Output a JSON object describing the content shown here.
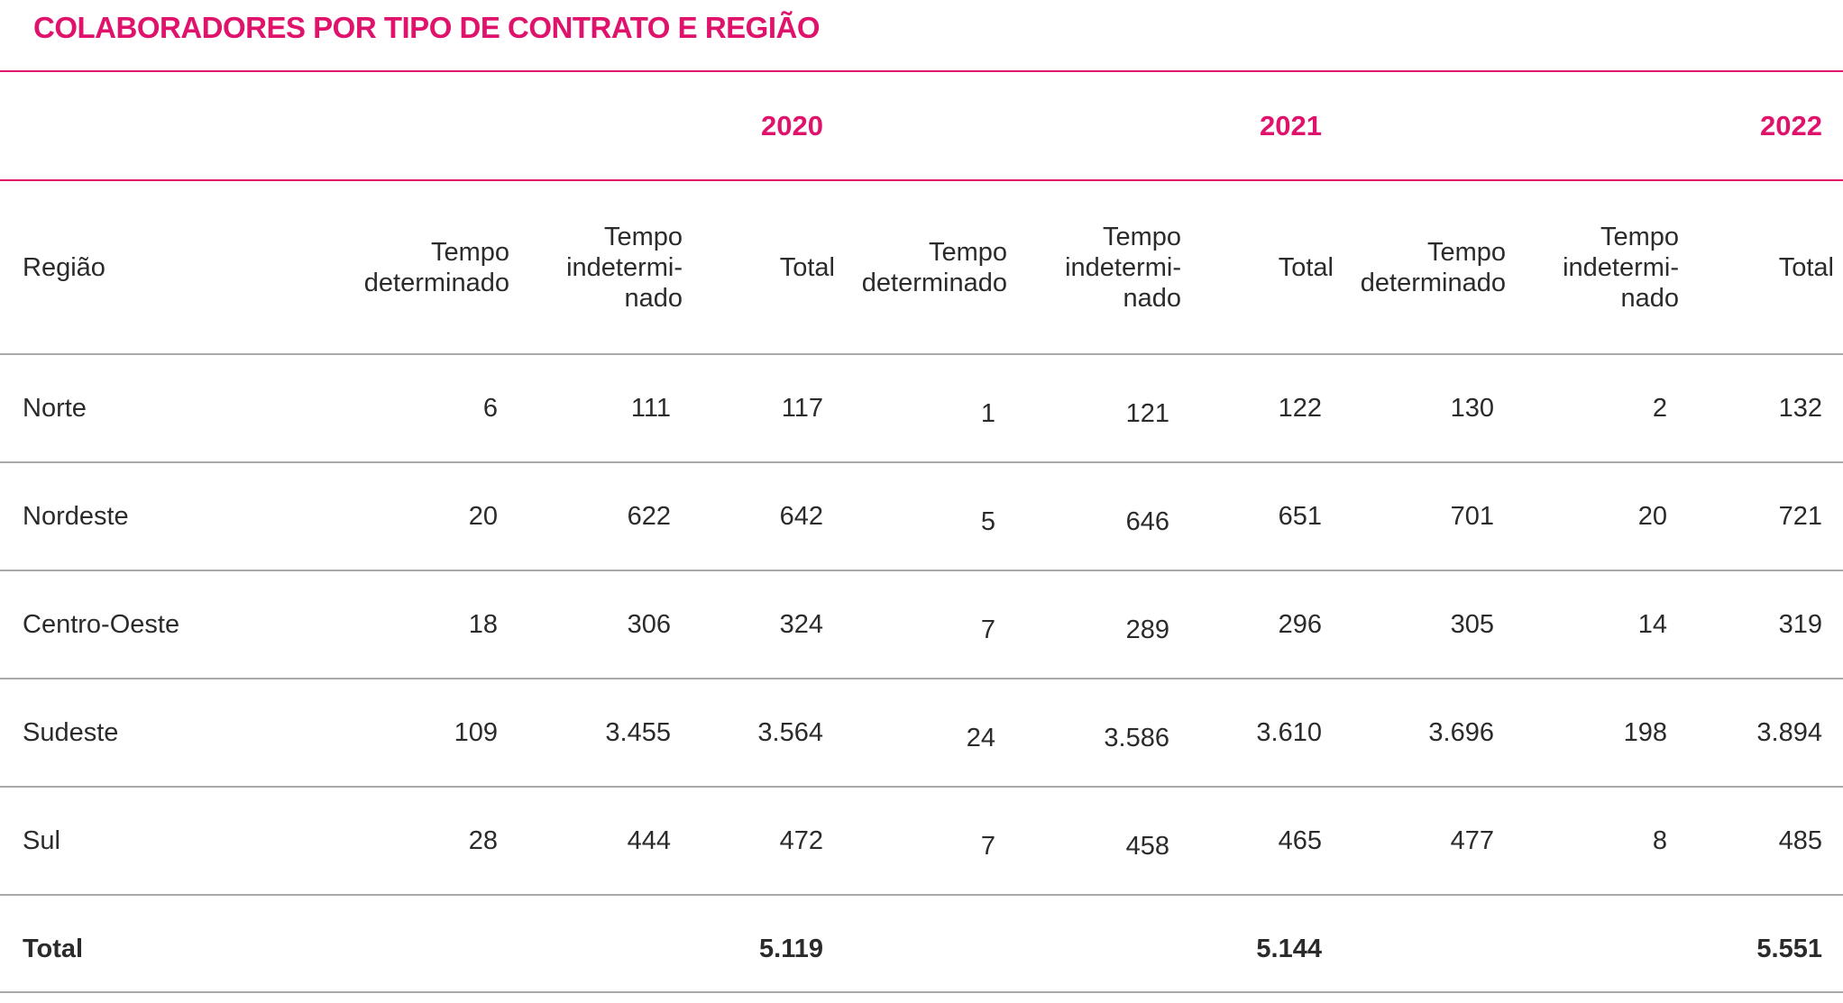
{
  "title": "COLABORADORES POR TIPO DE CONTRATO E REGIÃO",
  "years": [
    "2020",
    "2021",
    "2022"
  ],
  "headers": {
    "region": "Região",
    "fixed_term": "Tempo determinado",
    "indefinite_l1": "Tempo",
    "indefinite_l2": "indetermi-",
    "indefinite_l3": "nado",
    "total": "Total"
  },
  "rows": [
    {
      "region": "Norte",
      "values": [
        "6",
        "111",
        "117",
        "1",
        "121",
        "122",
        "130",
        "2",
        "132"
      ]
    },
    {
      "region": "Nordeste",
      "values": [
        "20",
        "622",
        "642",
        "5",
        "646",
        "651",
        "701",
        "20",
        "721"
      ]
    },
    {
      "region": "Centro-Oeste",
      "values": [
        "18",
        "306",
        "324",
        "7",
        "289",
        "296",
        "305",
        "14",
        "319"
      ]
    },
    {
      "region": "Sudeste",
      "values": [
        "109",
        "3.455",
        "3.564",
        "24",
        "3.586",
        "3.610",
        "3.696",
        "198",
        "3.894"
      ]
    },
    {
      "region": "Sul",
      "values": [
        "28",
        "444",
        "472",
        "7",
        "458",
        "465",
        "477",
        "8",
        "485"
      ]
    }
  ],
  "total": {
    "label": "Total",
    "values": [
      "5.119",
      "5.144",
      "5.551"
    ]
  },
  "colors": {
    "accent": "#e0136c",
    "divider": "#a9a9a9"
  }
}
